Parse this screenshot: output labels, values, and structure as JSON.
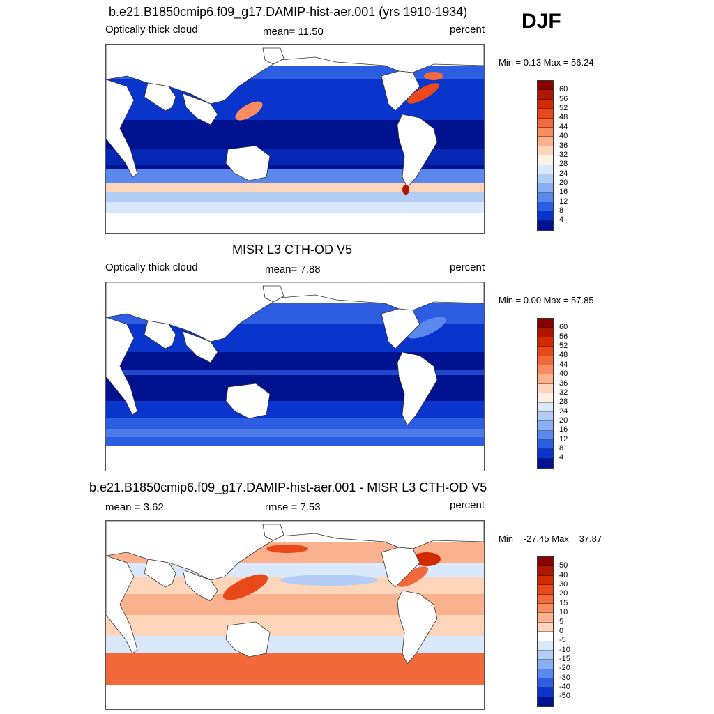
{
  "season": "DJF",
  "panels": [
    {
      "title": "b.e21.B1850cmip6.f09_g17.DAMIP-hist-aer.001 (yrs 1910-1934)",
      "left_label": "Optically thick cloud",
      "center_label": "mean=  11.50",
      "units": "percent",
      "minmax": "Min =   0.13 Max =  56.24",
      "colorbar": {
        "labels": [
          "60",
          "56",
          "52",
          "48",
          "44",
          "40",
          "36",
          "32",
          "28",
          "24",
          "20",
          "16",
          "12",
          "8",
          "4"
        ],
        "colors": [
          "#8b0000",
          "#b01500",
          "#d42a00",
          "#e8481a",
          "#f26a3c",
          "#f78d61",
          "#fab28e",
          "#fcd5bb",
          "#fdf0e4",
          "#d9e8fb",
          "#b4cdf7",
          "#8aaef2",
          "#5b88ec",
          "#2d5ee2",
          "#0a35cc",
          "#00128f"
        ]
      }
    },
    {
      "title": "MISR L3 CTH-OD V5",
      "left_label": "Optically thick cloud",
      "center_label": "mean=   7.88",
      "units": "percent",
      "minmax": "Min =   0.00 Max =  57.85",
      "colorbar": {
        "labels": [
          "60",
          "56",
          "52",
          "48",
          "44",
          "40",
          "36",
          "32",
          "28",
          "24",
          "20",
          "16",
          "12",
          "8",
          "4"
        ],
        "colors": [
          "#8b0000",
          "#b01500",
          "#d42a00",
          "#e8481a",
          "#f26a3c",
          "#f78d61",
          "#fab28e",
          "#fcd5bb",
          "#fdf0e4",
          "#d9e8fb",
          "#b4cdf7",
          "#8aaef2",
          "#5b88ec",
          "#2d5ee2",
          "#0a35cc",
          "#00128f"
        ]
      }
    },
    {
      "title": "b.e21.B1850cmip6.f09_g17.DAMIP-hist-aer.001 - MISR L3 CTH-OD V5",
      "left_label": "mean =   3.62",
      "center_label": "rmse =   7.53",
      "units": "percent",
      "minmax": "Min = -27.45 Max =  37.87",
      "colorbar": {
        "labels": [
          "50",
          "40",
          "30",
          "20",
          "15",
          "10",
          "5",
          "0",
          "-5",
          "-10",
          "-15",
          "-20",
          "-30",
          "-40",
          "-50"
        ],
        "colors": [
          "#8b0000",
          "#b01500",
          "#d42a00",
          "#e8481a",
          "#f26a3c",
          "#f78d61",
          "#fab28e",
          "#fcd5bb",
          "#ffffff",
          "#d9e8fb",
          "#b4cdf7",
          "#8aaef2",
          "#5b88ec",
          "#2d5ee2",
          "#0a35cc",
          "#00128f"
        ]
      }
    }
  ]
}
